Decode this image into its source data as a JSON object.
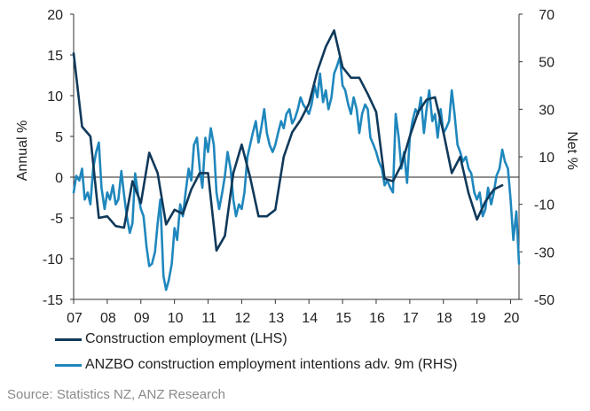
{
  "chart_data": {
    "type": "line",
    "x_range": [
      2007,
      2020.25
    ],
    "x_tick_labels": [
      "07",
      "08",
      "09",
      "10",
      "11",
      "12",
      "13",
      "14",
      "15",
      "16",
      "17",
      "18",
      "19",
      "20"
    ],
    "y_left": {
      "label": "Annual %",
      "range": [
        -15,
        20
      ],
      "ticks": [
        "20",
        "15",
        "10",
        "5",
        "0",
        "-5",
        "-10",
        "-15"
      ]
    },
    "y_right": {
      "label": "Net %",
      "range": [
        -50,
        70
      ],
      "ticks": [
        "70",
        "50",
        "30",
        "10",
        "-10",
        "-30",
        "-50"
      ]
    },
    "series": [
      {
        "name": "Construction employment (LHS)",
        "axis": "left",
        "color": "#10395a",
        "points": [
          [
            2007.0,
            15.2
          ],
          [
            2007.25,
            6.2
          ],
          [
            2007.5,
            5.0
          ],
          [
            2007.75,
            -5.0
          ],
          [
            2008.0,
            -4.8
          ],
          [
            2008.25,
            -6.0
          ],
          [
            2008.5,
            -6.2
          ],
          [
            2008.75,
            -0.5
          ],
          [
            2009.0,
            -3.2
          ],
          [
            2009.25,
            3.0
          ],
          [
            2009.5,
            0.5
          ],
          [
            2009.75,
            -5.8
          ],
          [
            2010.0,
            -4.0
          ],
          [
            2010.25,
            -4.5
          ],
          [
            2010.5,
            -1.5
          ],
          [
            2010.75,
            0.5
          ],
          [
            2011.0,
            0.5
          ],
          [
            2011.25,
            -9.0
          ],
          [
            2011.5,
            -7.2
          ],
          [
            2011.75,
            0.5
          ],
          [
            2012.0,
            4.0
          ],
          [
            2012.25,
            0.0
          ],
          [
            2012.5,
            -4.8
          ],
          [
            2012.75,
            -4.8
          ],
          [
            2013.0,
            -4.0
          ],
          [
            2013.25,
            2.5
          ],
          [
            2013.5,
            5.5
          ],
          [
            2013.75,
            7.0
          ],
          [
            2014.0,
            9.0
          ],
          [
            2014.25,
            13.0
          ],
          [
            2014.5,
            16.0
          ],
          [
            2014.75,
            18.0
          ],
          [
            2015.0,
            13.5
          ],
          [
            2015.25,
            12.2
          ],
          [
            2015.5,
            12.2
          ],
          [
            2015.75,
            10.2
          ],
          [
            2016.0,
            8.0
          ],
          [
            2016.25,
            -0.2
          ],
          [
            2016.5,
            -0.5
          ],
          [
            2016.75,
            1.5
          ],
          [
            2017.0,
            5.0
          ],
          [
            2017.25,
            8.0
          ],
          [
            2017.5,
            9.5
          ],
          [
            2017.75,
            9.8
          ],
          [
            2018.0,
            5.5
          ],
          [
            2018.25,
            0.5
          ],
          [
            2018.5,
            2.5
          ],
          [
            2018.75,
            -2.0
          ],
          [
            2019.0,
            -5.2
          ],
          [
            2019.25,
            -3.0
          ],
          [
            2019.5,
            -1.5
          ],
          [
            2019.75,
            -1.0
          ]
        ]
      },
      {
        "name": "ANZBO construction employment intentions adv. 9m (RHS)",
        "axis": "right",
        "color": "#1f87bd",
        "points": [
          [
            2007.0,
            -5
          ],
          [
            2007.08,
            2
          ],
          [
            2007.17,
            0
          ],
          [
            2007.25,
            5
          ],
          [
            2007.33,
            -8
          ],
          [
            2007.42,
            -5
          ],
          [
            2007.5,
            -10
          ],
          [
            2007.58,
            5
          ],
          [
            2007.67,
            12
          ],
          [
            2007.75,
            16
          ],
          [
            2007.83,
            -3
          ],
          [
            2007.92,
            -12
          ],
          [
            2008.0,
            -5
          ],
          [
            2008.08,
            -8
          ],
          [
            2008.17,
            -2
          ],
          [
            2008.25,
            -10
          ],
          [
            2008.33,
            -8
          ],
          [
            2008.42,
            4
          ],
          [
            2008.5,
            -6
          ],
          [
            2008.58,
            -15
          ],
          [
            2008.67,
            -22
          ],
          [
            2008.75,
            -18
          ],
          [
            2008.83,
            3
          ],
          [
            2008.92,
            -6
          ],
          [
            2009.0,
            -12
          ],
          [
            2009.08,
            -15
          ],
          [
            2009.17,
            -28
          ],
          [
            2009.25,
            -36
          ],
          [
            2009.33,
            -35
          ],
          [
            2009.42,
            -30
          ],
          [
            2009.5,
            -18
          ],
          [
            2009.58,
            -8
          ],
          [
            2009.67,
            -40
          ],
          [
            2009.75,
            -46
          ],
          [
            2009.83,
            -42
          ],
          [
            2009.92,
            -35
          ],
          [
            2010.0,
            -20
          ],
          [
            2010.08,
            -25
          ],
          [
            2010.17,
            -10
          ],
          [
            2010.25,
            -15
          ],
          [
            2010.33,
            -5
          ],
          [
            2010.42,
            5
          ],
          [
            2010.5,
            0
          ],
          [
            2010.58,
            15
          ],
          [
            2010.67,
            18
          ],
          [
            2010.75,
            5
          ],
          [
            2010.83,
            -3
          ],
          [
            2010.92,
            18
          ],
          [
            2011.0,
            12
          ],
          [
            2011.08,
            22
          ],
          [
            2011.17,
            15
          ],
          [
            2011.25,
            -5
          ],
          [
            2011.33,
            -12
          ],
          [
            2011.42,
            -5
          ],
          [
            2011.5,
            2
          ],
          [
            2011.58,
            12
          ],
          [
            2011.67,
            5
          ],
          [
            2011.75,
            -8
          ],
          [
            2011.83,
            -15
          ],
          [
            2011.92,
            -10
          ],
          [
            2012.0,
            -12
          ],
          [
            2012.08,
            -5
          ],
          [
            2012.17,
            10
          ],
          [
            2012.25,
            15
          ],
          [
            2012.33,
            20
          ],
          [
            2012.42,
            25
          ],
          [
            2012.5,
            16
          ],
          [
            2012.58,
            22
          ],
          [
            2012.67,
            30
          ],
          [
            2012.75,
            20
          ],
          [
            2012.83,
            15
          ],
          [
            2012.92,
            12
          ],
          [
            2013.0,
            15
          ],
          [
            2013.08,
            20
          ],
          [
            2013.17,
            25
          ],
          [
            2013.25,
            22
          ],
          [
            2013.33,
            28
          ],
          [
            2013.42,
            30
          ],
          [
            2013.5,
            24
          ],
          [
            2013.58,
            26
          ],
          [
            2013.67,
            30
          ],
          [
            2013.75,
            35
          ],
          [
            2013.83,
            32
          ],
          [
            2013.92,
            30
          ],
          [
            2014.0,
            28
          ],
          [
            2014.08,
            32
          ],
          [
            2014.17,
            40
          ],
          [
            2014.25,
            35
          ],
          [
            2014.33,
            45
          ],
          [
            2014.42,
            33
          ],
          [
            2014.5,
            38
          ],
          [
            2014.58,
            30
          ],
          [
            2014.67,
            35
          ],
          [
            2014.75,
            45
          ],
          [
            2014.83,
            48
          ],
          [
            2014.92,
            52
          ],
          [
            2015.0,
            40
          ],
          [
            2015.08,
            38
          ],
          [
            2015.17,
            32
          ],
          [
            2015.25,
            28
          ],
          [
            2015.33,
            35
          ],
          [
            2015.42,
            30
          ],
          [
            2015.5,
            20
          ],
          [
            2015.58,
            28
          ],
          [
            2015.67,
            32
          ],
          [
            2015.75,
            30
          ],
          [
            2015.83,
            18
          ],
          [
            2015.92,
            15
          ],
          [
            2016.0,
            12
          ],
          [
            2016.08,
            8
          ],
          [
            2016.17,
            5
          ],
          [
            2016.25,
            -2
          ],
          [
            2016.33,
            0
          ],
          [
            2016.42,
            -3
          ],
          [
            2016.5,
            -5
          ],
          [
            2016.58,
            28
          ],
          [
            2016.67,
            18
          ],
          [
            2016.75,
            5
          ],
          [
            2016.83,
            12
          ],
          [
            2016.92,
            -1
          ],
          [
            2017.0,
            18
          ],
          [
            2017.08,
            25
          ],
          [
            2017.17,
            30
          ],
          [
            2017.25,
            28
          ],
          [
            2017.33,
            35
          ],
          [
            2017.42,
            20
          ],
          [
            2017.5,
            30
          ],
          [
            2017.58,
            38
          ],
          [
            2017.67,
            25
          ],
          [
            2017.75,
            28
          ],
          [
            2017.83,
            18
          ],
          [
            2017.92,
            30
          ],
          [
            2018.0,
            20
          ],
          [
            2018.08,
            22
          ],
          [
            2018.17,
            25
          ],
          [
            2018.25,
            38
          ],
          [
            2018.33,
            28
          ],
          [
            2018.42,
            15
          ],
          [
            2018.5,
            12
          ],
          [
            2018.58,
            8
          ],
          [
            2018.67,
            10
          ],
          [
            2018.75,
            5
          ],
          [
            2018.83,
            3
          ],
          [
            2018.92,
            -5
          ],
          [
            2019.0,
            -8
          ],
          [
            2019.08,
            -5
          ],
          [
            2019.17,
            -15
          ],
          [
            2019.25,
            -12
          ],
          [
            2019.33,
            -3
          ],
          [
            2019.42,
            -10
          ],
          [
            2019.5,
            -5
          ],
          [
            2019.58,
            2
          ],
          [
            2019.67,
            5
          ],
          [
            2019.75,
            13
          ],
          [
            2019.83,
            8
          ],
          [
            2019.92,
            5
          ],
          [
            2020.0,
            -8
          ],
          [
            2020.08,
            -25
          ],
          [
            2020.17,
            -13
          ],
          [
            2020.25,
            -35
          ]
        ]
      }
    ]
  },
  "legend": [
    {
      "label": "Construction employment (LHS)",
      "color": "#10395a"
    },
    {
      "label": "ANZBO construction employment intentions adv. 9m (RHS)",
      "color": "#1f87bd"
    }
  ],
  "source": "Source: Statistics NZ, ANZ Research"
}
